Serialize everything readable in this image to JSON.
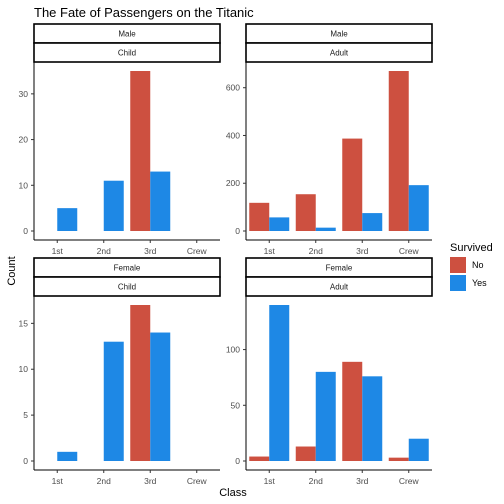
{
  "chart_data": {
    "type": "bar",
    "title": "The Fate of Passengers on the Titanic",
    "xlabel": "Class",
    "ylabel": "Count",
    "categories": [
      "1st",
      "2nd",
      "3rd",
      "Crew"
    ],
    "legend": {
      "title": "Survived",
      "placement": "right",
      "items": [
        {
          "label": "No",
          "color": "#CD5040"
        },
        {
          "label": "Yes",
          "color": "#1E88E5"
        }
      ]
    },
    "colors": {
      "No": "#CD5040",
      "Yes": "#1E88E5"
    },
    "panels": [
      {
        "strips": [
          "Male",
          "Child"
        ],
        "ylim": [
          0,
          35
        ],
        "yticks": [
          0,
          10,
          20,
          30
        ],
        "series": [
          {
            "name": "No",
            "values": [
              0,
              0,
              35,
              0
            ]
          },
          {
            "name": "Yes",
            "values": [
              5,
              11,
              13,
              0
            ]
          }
        ]
      },
      {
        "strips": [
          "Male",
          "Adult"
        ],
        "ylim": [
          0,
          670
        ],
        "yticks": [
          0,
          200,
          400,
          600
        ],
        "series": [
          {
            "name": "No",
            "values": [
              118,
              154,
              387,
              670
            ]
          },
          {
            "name": "Yes",
            "values": [
              57,
              14,
              75,
              192
            ]
          }
        ]
      },
      {
        "strips": [
          "Female",
          "Child"
        ],
        "ylim": [
          0,
          17
        ],
        "yticks": [
          0,
          5,
          10,
          15
        ],
        "series": [
          {
            "name": "No",
            "values": [
              0,
              0,
              17,
              0
            ]
          },
          {
            "name": "Yes",
            "values": [
              1,
              13,
              14,
              0
            ]
          }
        ]
      },
      {
        "strips": [
          "Female",
          "Adult"
        ],
        "ylim": [
          0,
          140
        ],
        "yticks": [
          0,
          50,
          100
        ],
        "series": [
          {
            "name": "No",
            "values": [
              4,
              13,
              89,
              3
            ]
          },
          {
            "name": "Yes",
            "values": [
              140,
              80,
              76,
              20
            ]
          }
        ]
      }
    ]
  }
}
